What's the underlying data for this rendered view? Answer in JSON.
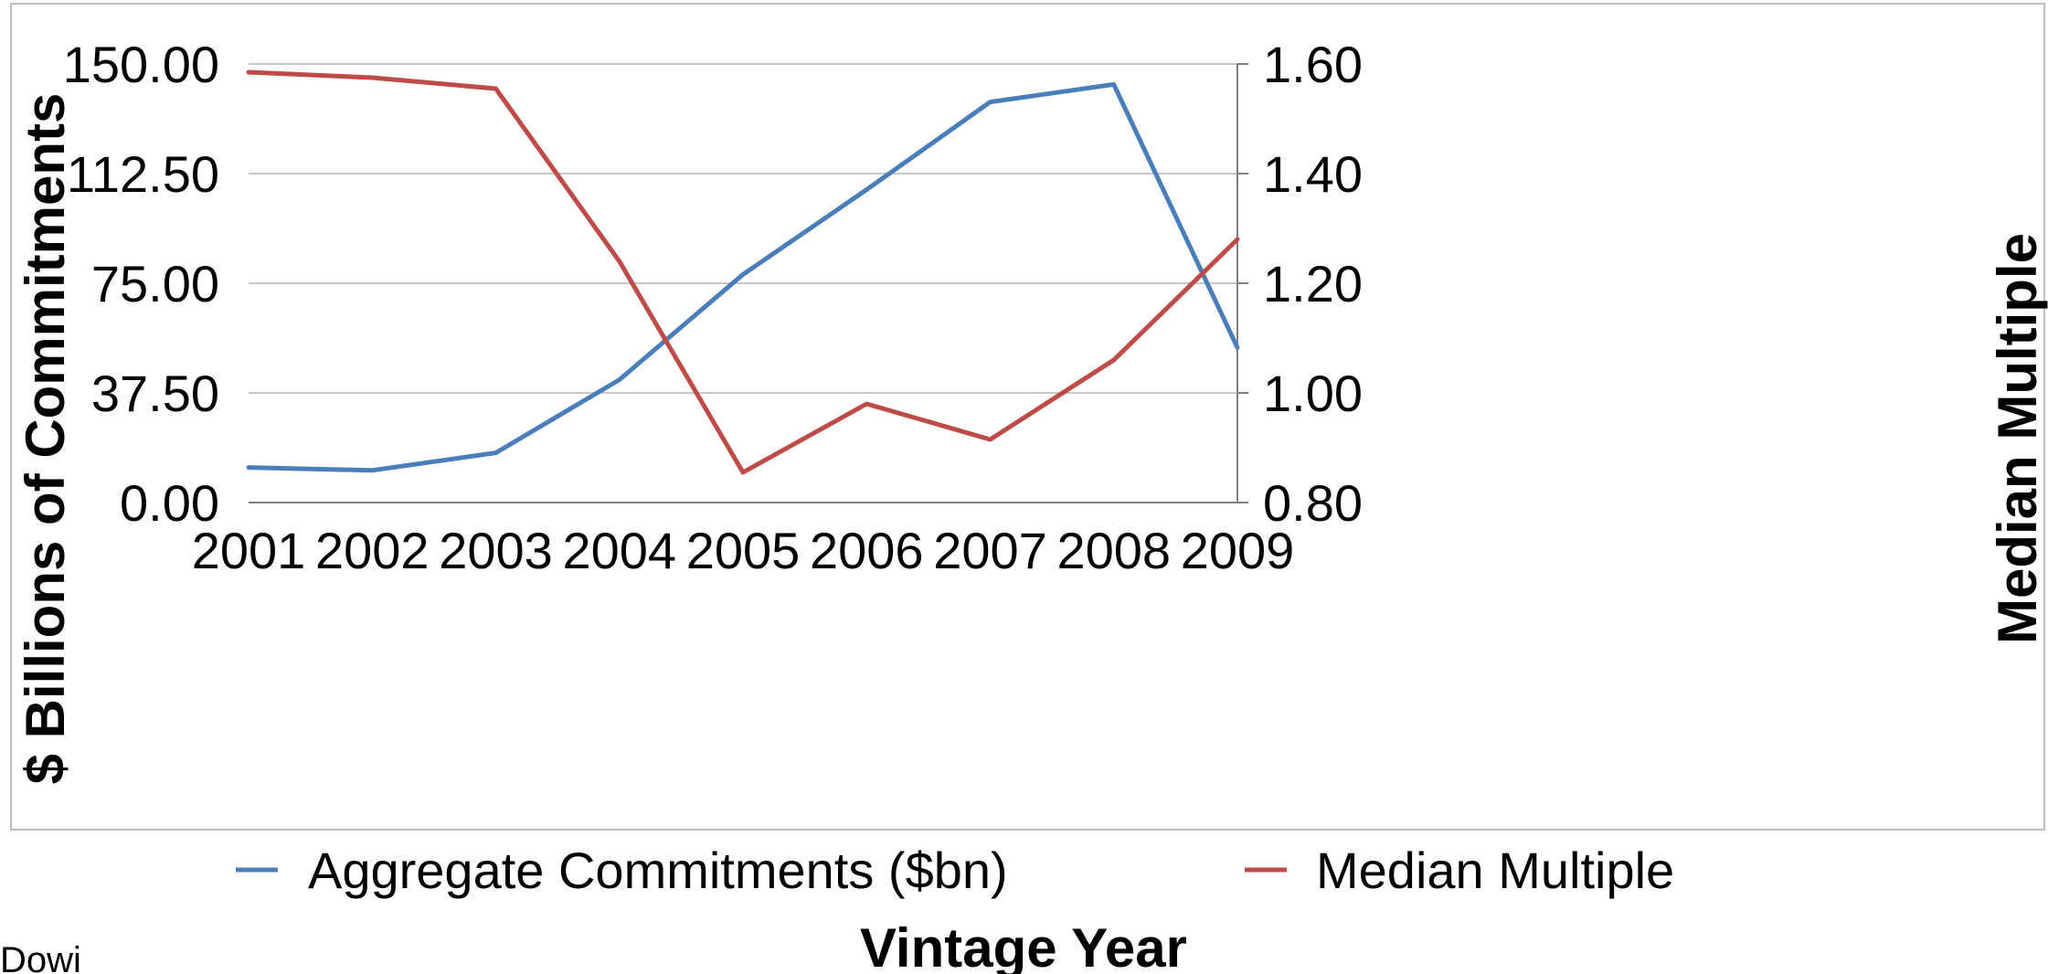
{
  "chart_data": {
    "type": "line",
    "title": "",
    "categories": [
      "2001",
      "2002",
      "2003",
      "2004",
      "2005",
      "2006",
      "2007",
      "2008",
      "2009"
    ],
    "xlabel": "Vintage Year",
    "ylabel_left": "$ Billions of Commitments",
    "ylabel_right": "Median Multiple",
    "left_axis": {
      "min": 0,
      "max": 150,
      "ticks": [
        0,
        37.5,
        75,
        112.5,
        150
      ],
      "tick_labels": [
        "0.00",
        "37.50",
        "75.00",
        "112.50",
        "150.00"
      ]
    },
    "right_axis": {
      "min": 0.8,
      "max": 1.6,
      "ticks": [
        0.8,
        1.0,
        1.2,
        1.4,
        1.6
      ],
      "tick_labels": [
        "0.80",
        "1.00",
        "1.20",
        "1.40",
        "1.60"
      ]
    },
    "grid": true,
    "legend_position": "bottom",
    "series": [
      {
        "name": "Aggregate Commitments ($bn)",
        "axis": "left",
        "color": "#4a7ebb",
        "values": [
          12,
          11,
          17,
          42,
          78,
          107,
          137,
          143,
          53
        ]
      },
      {
        "name": "Median Multiple",
        "axis": "right",
        "color": "#be4b48",
        "values": [
          1.585,
          1.575,
          1.555,
          1.24,
          0.855,
          0.98,
          0.915,
          1.06,
          1.28
        ]
      }
    ]
  },
  "corner_text": "Dowi"
}
